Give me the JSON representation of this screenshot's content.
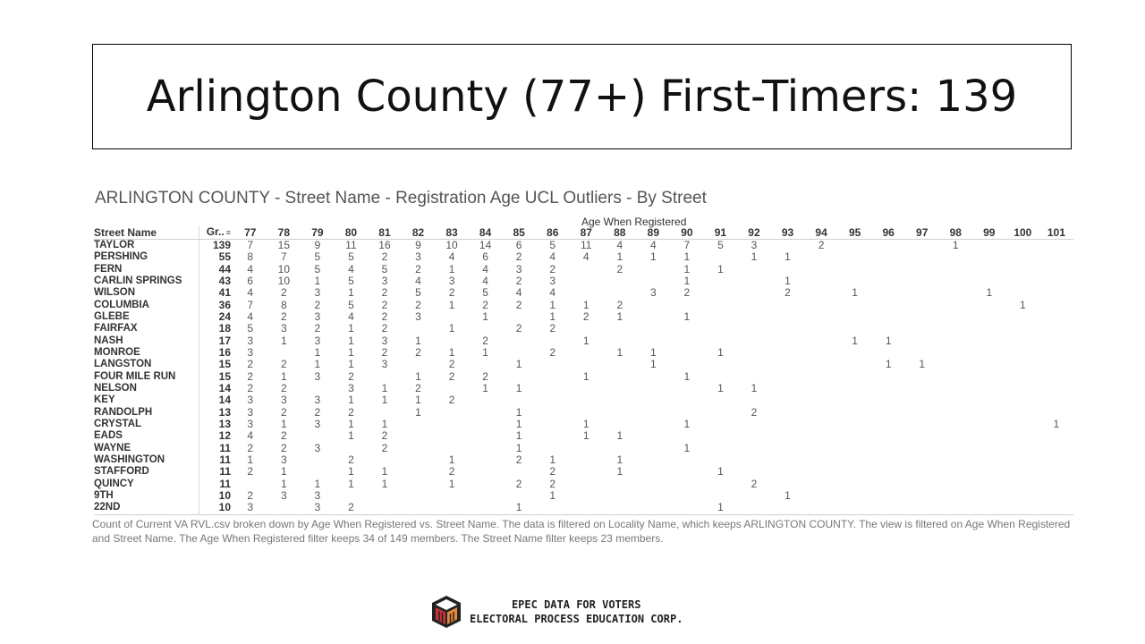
{
  "slide": {
    "title": "Arlington County (77+) First-Timers: 139"
  },
  "view": {
    "title": "ARLINGTON COUNTY  - Street Name -  Registration Age UCL Outliers - By Street",
    "column_group_label": "Age When Registered",
    "row_header": "Street Name",
    "grand_header": "Gr..",
    "ages": [
      "77",
      "78",
      "79",
      "80",
      "81",
      "82",
      "83",
      "84",
      "85",
      "86",
      "87",
      "88",
      "89",
      "90",
      "91",
      "92",
      "93",
      "94",
      "95",
      "96",
      "97",
      "98",
      "99",
      "100",
      "101"
    ],
    "rows": [
      {
        "street": "TAYLOR",
        "total": "139",
        "cells": [
          "7",
          "15",
          "9",
          "11",
          "16",
          "9",
          "10",
          "14",
          "6",
          "5",
          "11",
          "4",
          "4",
          "7",
          "5",
          "3",
          "",
          "2",
          "",
          "",
          "",
          "1",
          "",
          "",
          ""
        ]
      },
      {
        "street": "PERSHING",
        "total": "55",
        "cells": [
          "8",
          "7",
          "5",
          "5",
          "2",
          "3",
          "4",
          "6",
          "2",
          "4",
          "4",
          "1",
          "1",
          "1",
          "",
          "1",
          "1",
          "",
          "",
          "",
          "",
          "",
          "",
          "",
          ""
        ]
      },
      {
        "street": "FERN",
        "total": "44",
        "cells": [
          "4",
          "10",
          "5",
          "4",
          "5",
          "2",
          "1",
          "4",
          "3",
          "2",
          "",
          "2",
          "",
          "1",
          "1",
          "",
          "",
          "",
          "",
          "",
          "",
          "",
          "",
          "",
          ""
        ]
      },
      {
        "street": "CARLIN SPRINGS",
        "total": "43",
        "cells": [
          "6",
          "10",
          "1",
          "5",
          "3",
          "4",
          "3",
          "4",
          "2",
          "3",
          "",
          "",
          "",
          "1",
          "",
          "",
          "1",
          "",
          "",
          "",
          "",
          "",
          "",
          "",
          ""
        ]
      },
      {
        "street": "WILSON",
        "total": "41",
        "cells": [
          "4",
          "2",
          "3",
          "1",
          "2",
          "5",
          "2",
          "5",
          "4",
          "4",
          "",
          "",
          "3",
          "2",
          "",
          "",
          "2",
          "",
          "1",
          "",
          "",
          "",
          "1",
          "",
          ""
        ]
      },
      {
        "street": "COLUMBIA",
        "total": "36",
        "cells": [
          "7",
          "8",
          "2",
          "5",
          "2",
          "2",
          "1",
          "2",
          "2",
          "1",
          "1",
          "2",
          "",
          "",
          "",
          "",
          "",
          "",
          "",
          "",
          "",
          "",
          "",
          "1",
          ""
        ]
      },
      {
        "street": "GLEBE",
        "total": "24",
        "cells": [
          "4",
          "2",
          "3",
          "4",
          "2",
          "3",
          "",
          "1",
          "",
          "1",
          "2",
          "1",
          "",
          "1",
          "",
          "",
          "",
          "",
          "",
          "",
          "",
          "",
          "",
          "",
          ""
        ]
      },
      {
        "street": "FAIRFAX",
        "total": "18",
        "cells": [
          "5",
          "3",
          "2",
          "1",
          "2",
          "",
          "1",
          "",
          "2",
          "2",
          "",
          "",
          "",
          "",
          "",
          "",
          "",
          "",
          "",
          "",
          "",
          "",
          "",
          "",
          ""
        ]
      },
      {
        "street": "NASH",
        "total": "17",
        "cells": [
          "3",
          "1",
          "3",
          "1",
          "3",
          "1",
          "",
          "2",
          "",
          "",
          "1",
          "",
          "",
          "",
          "",
          "",
          "",
          "",
          "1",
          "1",
          "",
          "",
          "",
          "",
          ""
        ]
      },
      {
        "street": "MONROE",
        "total": "16",
        "cells": [
          "3",
          "",
          "1",
          "1",
          "2",
          "2",
          "1",
          "1",
          "",
          "2",
          "",
          "1",
          "1",
          "",
          "1",
          "",
          "",
          "",
          "",
          "",
          "",
          "",
          "",
          "",
          ""
        ]
      },
      {
        "street": "LANGSTON",
        "total": "15",
        "cells": [
          "2",
          "2",
          "1",
          "1",
          "3",
          "",
          "2",
          "",
          "1",
          "",
          "",
          "",
          "1",
          "",
          "",
          "",
          "",
          "",
          "",
          "1",
          "1",
          "",
          "",
          "",
          ""
        ]
      },
      {
        "street": "FOUR MILE RUN",
        "total": "15",
        "cells": [
          "2",
          "1",
          "3",
          "2",
          "",
          "1",
          "2",
          "2",
          "",
          "",
          "1",
          "",
          "",
          "1",
          "",
          "",
          "",
          "",
          "",
          "",
          "",
          "",
          "",
          "",
          ""
        ]
      },
      {
        "street": "NELSON",
        "total": "14",
        "cells": [
          "2",
          "2",
          "",
          "3",
          "1",
          "2",
          "",
          "1",
          "1",
          "",
          "",
          "",
          "",
          "",
          "1",
          "1",
          "",
          "",
          "",
          "",
          "",
          "",
          "",
          "",
          ""
        ]
      },
      {
        "street": "KEY",
        "total": "14",
        "cells": [
          "3",
          "3",
          "3",
          "1",
          "1",
          "1",
          "2",
          "",
          "",
          "",
          "",
          "",
          "",
          "",
          "",
          "",
          "",
          "",
          "",
          "",
          "",
          "",
          "",
          "",
          ""
        ]
      },
      {
        "street": "RANDOLPH",
        "total": "13",
        "cells": [
          "3",
          "2",
          "2",
          "2",
          "",
          "1",
          "",
          "",
          "1",
          "",
          "",
          "",
          "",
          "",
          "",
          "2",
          "",
          "",
          "",
          "",
          "",
          "",
          "",
          "",
          ""
        ]
      },
      {
        "street": "CRYSTAL",
        "total": "13",
        "cells": [
          "3",
          "1",
          "3",
          "1",
          "1",
          "",
          "",
          "",
          "1",
          "",
          "1",
          "",
          "",
          "1",
          "",
          "",
          "",
          "",
          "",
          "",
          "",
          "",
          "",
          "",
          "1"
        ]
      },
      {
        "street": "EADS",
        "total": "12",
        "cells": [
          "4",
          "2",
          "",
          "1",
          "2",
          "",
          "",
          "",
          "1",
          "",
          "1",
          "1",
          "",
          "",
          "",
          "",
          "",
          "",
          "",
          "",
          "",
          "",
          "",
          "",
          ""
        ]
      },
      {
        "street": "WAYNE",
        "total": "11",
        "cells": [
          "2",
          "2",
          "3",
          "",
          "2",
          "",
          "",
          "",
          "1",
          "",
          "",
          "",
          "",
          "1",
          "",
          "",
          "",
          "",
          "",
          "",
          "",
          "",
          "",
          "",
          ""
        ]
      },
      {
        "street": "WASHINGTON",
        "total": "11",
        "cells": [
          "1",
          "3",
          "",
          "2",
          "",
          "",
          "1",
          "",
          "2",
          "1",
          "",
          "1",
          "",
          "",
          "",
          "",
          "",
          "",
          "",
          "",
          "",
          "",
          "",
          "",
          ""
        ]
      },
      {
        "street": "STAFFORD",
        "total": "11",
        "cells": [
          "2",
          "1",
          "",
          "1",
          "1",
          "",
          "2",
          "",
          "",
          "2",
          "",
          "1",
          "",
          "",
          "1",
          "",
          "",
          "",
          "",
          "",
          "",
          "",
          "",
          "",
          ""
        ]
      },
      {
        "street": "QUINCY",
        "total": "11",
        "cells": [
          "",
          "1",
          "1",
          "1",
          "1",
          "",
          "1",
          "",
          "2",
          "2",
          "",
          "",
          "",
          "",
          "",
          "2",
          "",
          "",
          "",
          "",
          "",
          "",
          "",
          "",
          ""
        ]
      },
      {
        "street": "9TH",
        "total": "10",
        "cells": [
          "2",
          "3",
          "3",
          "",
          "",
          "",
          "",
          "",
          "",
          "1",
          "",
          "",
          "",
          "",
          "",
          "",
          "1",
          "",
          "",
          "",
          "",
          "",
          "",
          "",
          ""
        ]
      },
      {
        "street": "22ND",
        "total": "10",
        "cells": [
          "3",
          "",
          "3",
          "2",
          "",
          "",
          "",
          "",
          "1",
          "",
          "",
          "",
          "",
          "",
          "1",
          "",
          "",
          "",
          "",
          "",
          "",
          "",
          "",
          "",
          ""
        ]
      }
    ],
    "caption": "Count of Current VA RVL.csv broken down by Age When Registered vs. Street Name.  The data is filtered on Locality Name, which keeps ARLINGTON COUNTY. The view is filtered on Age When Registered and Street Name. The Age When Registered filter keeps 34 of 149 members. The Street Name filter keeps 23 members."
  },
  "logo": {
    "line1": "EPEC DATA FOR VOTERS",
    "line2": "ELECTORAL PROCESS EDUCATION CORP."
  },
  "colors": {
    "logo_red": "#c8323a",
    "logo_orange": "#e58a3a",
    "logo_dark": "#222222"
  }
}
